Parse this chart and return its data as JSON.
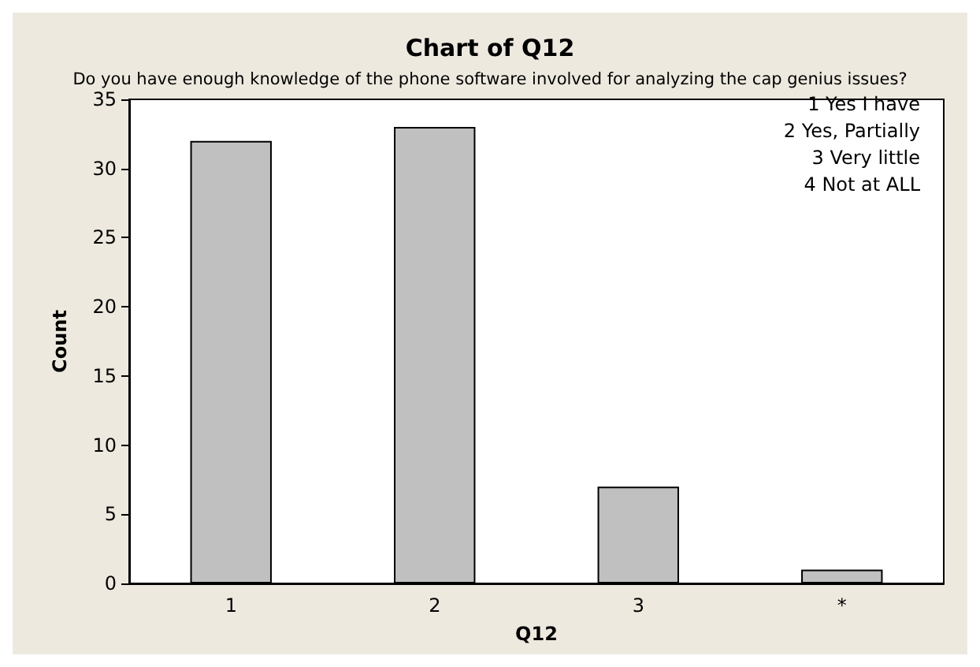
{
  "chart_data": {
    "type": "bar",
    "title": "Chart of Q12",
    "subtitle": "Do you have enough knowledge of the phone software involved for analyzing the cap genius issues?",
    "xlabel": "Q12",
    "ylabel": "Count",
    "categories": [
      "1",
      "2",
      "3",
      "*"
    ],
    "values": [
      32,
      33,
      7,
      1
    ],
    "color": "#c0c0c0",
    "ylim": [
      0,
      35
    ],
    "yticks": [
      0,
      5,
      10,
      15,
      20,
      25,
      30,
      35
    ],
    "grid": false,
    "annotations": [
      "1 Yes I have",
      "2 Yes, Partially",
      "3 Very little",
      "4 Not at ALL"
    ]
  }
}
